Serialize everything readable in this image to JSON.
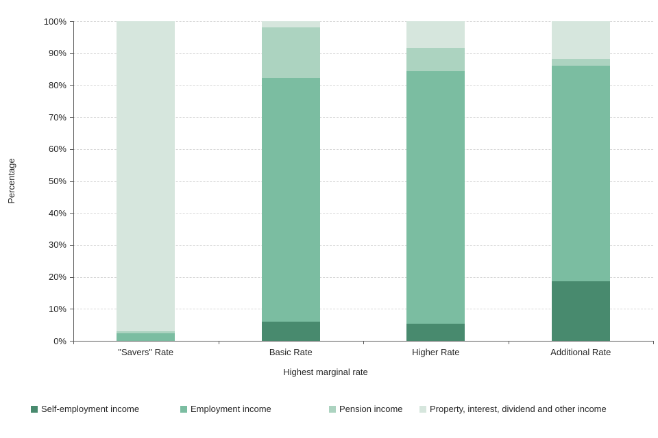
{
  "chart_data": {
    "type": "bar",
    "stacked": true,
    "stacking": "percent",
    "title": "",
    "xlabel": "Highest marginal rate",
    "ylabel": "Percentage",
    "ylim": [
      0,
      100
    ],
    "grid": "horizontal-dashed",
    "legend_position": "bottom",
    "categories": [
      "\"Savers\" Rate",
      "Basic Rate",
      "Higher Rate",
      "Additional Rate"
    ],
    "series": [
      {
        "name": "Self-employment income",
        "color": "#488a6e",
        "values": [
          0,
          6,
          5.3,
          18.7
        ]
      },
      {
        "name": "Employment income",
        "color": "#7bbda1",
        "values": [
          2.4,
          76.2,
          79.0,
          67.3
        ]
      },
      {
        "name": "Pension income",
        "color": "#acd3c0",
        "values": [
          0.7,
          15.9,
          7.3,
          2.3
        ]
      },
      {
        "name": "Property, interest, dividend and other income",
        "color": "#d6e6dd",
        "values": [
          96.9,
          1.9,
          8.4,
          11.7
        ]
      }
    ],
    "y_ticks": [
      {
        "label": "0%",
        "value": 0
      },
      {
        "label": "10%",
        "value": 10
      },
      {
        "label": "20%",
        "value": 20
      },
      {
        "label": "30%",
        "value": 30
      },
      {
        "label": "40%",
        "value": 40
      },
      {
        "label": "50%",
        "value": 50
      },
      {
        "label": "60%",
        "value": 60
      },
      {
        "label": "70%",
        "value": 70
      },
      {
        "label": "80%",
        "value": 80
      },
      {
        "label": "90%",
        "value": 90
      },
      {
        "label": "100%",
        "value": 100
      }
    ]
  },
  "colors": {
    "background": "#ffffff",
    "axis": "#595959",
    "gridline": "#d6d6d6",
    "text": "#262626"
  }
}
